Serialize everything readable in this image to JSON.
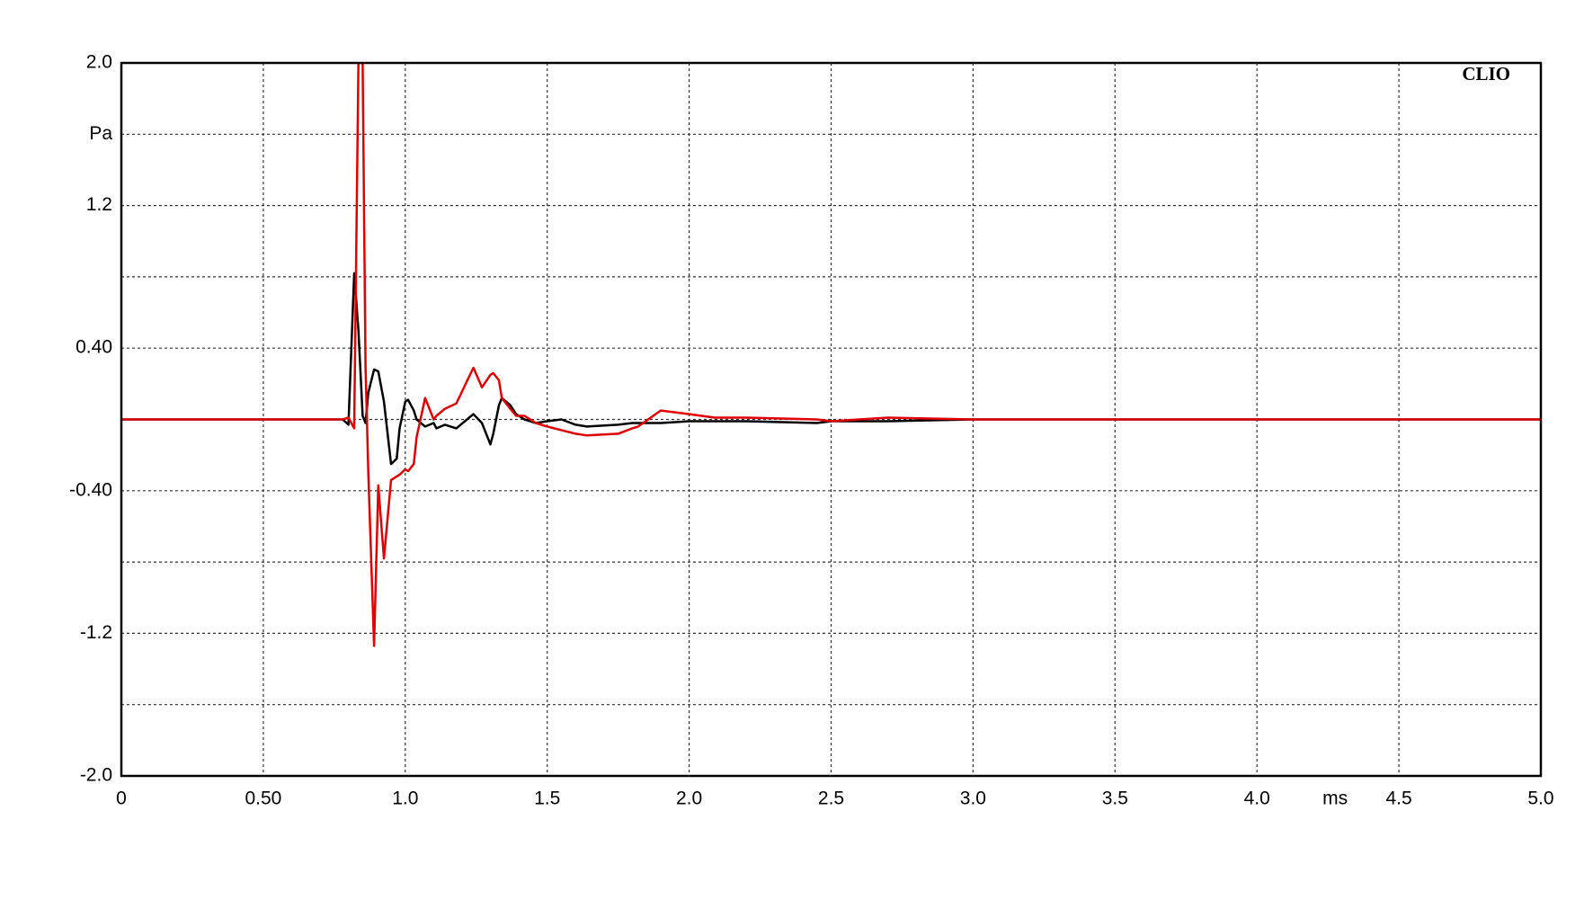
{
  "chart_data": {
    "type": "line",
    "annotation": "CLIO",
    "xlabel": "ms",
    "x": [
      0,
      0.2,
      0.78,
      0.8,
      0.82,
      0.835,
      0.85,
      0.86,
      0.87,
      0.89,
      0.905,
      0.925,
      0.95,
      0.97,
      0.98,
      1.0,
      1.01,
      1.03,
      1.04,
      1.07,
      1.1,
      1.11,
      1.14,
      1.18,
      1.24,
      1.27,
      1.3,
      1.31,
      1.33,
      1.34,
      1.37,
      1.39,
      1.42,
      1.46,
      1.5,
      1.55,
      1.6,
      1.64,
      1.75,
      1.8,
      1.82,
      1.9,
      2.0,
      2.09,
      2.2,
      2.45,
      2.5,
      2.7,
      3.0,
      4.0,
      5.0
    ],
    "series": [
      {
        "color": "#000000",
        "values": [
          0,
          0,
          0,
          -0.03,
          0.82,
          0.5,
          0.02,
          -0.02,
          0.15,
          0.28,
          0.27,
          0.1,
          -0.25,
          -0.22,
          -0.05,
          0.1,
          0.11,
          0.05,
          0,
          -0.04,
          -0.02,
          -0.05,
          -0.03,
          -0.05,
          0.03,
          -0.02,
          -0.14,
          -0.08,
          0.08,
          0.12,
          0.08,
          0.03,
          0,
          -0.02,
          -0.01,
          0,
          -0.03,
          -0.04,
          -0.03,
          -0.02,
          -0.02,
          -0.02,
          -0.01,
          -0.01,
          -0.01,
          -0.02,
          -0.01,
          -0.01,
          0,
          0,
          0
        ]
      },
      {
        "color": "#e00000",
        "values": [
          0,
          0,
          0,
          0.01,
          -0.05,
          2.0,
          2.0,
          0.3,
          -0.3,
          -1.27,
          -0.37,
          -0.78,
          -0.34,
          -0.32,
          -0.31,
          -0.28,
          -0.29,
          -0.25,
          -0.1,
          0.12,
          0,
          0.02,
          0.06,
          0.09,
          0.29,
          0.18,
          0.25,
          0.26,
          0.22,
          0.12,
          0.06,
          0.02,
          0.02,
          -0.02,
          -0.04,
          -0.06,
          -0.08,
          -0.09,
          -0.08,
          -0.05,
          -0.04,
          0.05,
          0.03,
          0.01,
          0.01,
          0,
          -0.01,
          0.01,
          0,
          0,
          0
        ]
      }
    ],
    "xlim": [
      0,
      5
    ],
    "ylim": [
      -2,
      2
    ],
    "xticks": [
      0,
      {
        "value": 0.5,
        "label": "0.50"
      },
      {
        "value": 1,
        "label": "1.0"
      },
      1.5,
      {
        "value": 2,
        "label": "2.0"
      },
      2.5,
      {
        "value": 3,
        "label": "3.0"
      },
      3.5,
      {
        "value": 4,
        "label": "4.0"
      },
      4.5,
      {
        "value": 5,
        "label": "5.0"
      }
    ],
    "yticks": [
      {
        "value": -2,
        "label": "-2.0"
      },
      {
        "value": -1.6
      },
      -1.2,
      {
        "value": -0.8
      },
      {
        "value": -0.4,
        "label": "-0.40"
      },
      {
        "value": 0
      },
      {
        "value": 0.4,
        "label": "0.40"
      },
      {
        "value": 0.8
      },
      1.2,
      {
        "value": 1.6,
        "label": "Pa"
      },
      {
        "value": 2,
        "label": "2.0"
      }
    ],
    "grid": true
  }
}
